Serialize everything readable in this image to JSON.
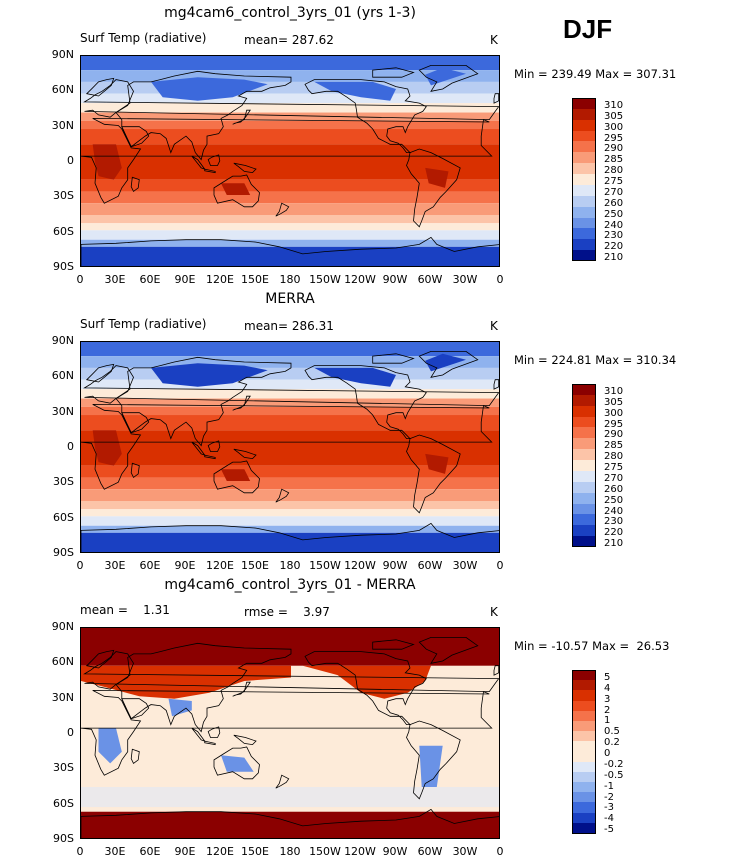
{
  "season": "DJF",
  "panels": [
    {
      "id": "model",
      "title": "mg4cam6_control_3yrs_01 (yrs 1-3)",
      "left_label": "Surf Temp (radiative)",
      "mid_label": "mean= 287.62",
      "units": "K",
      "minmax": "Min = 239.49 Max = 307.31",
      "levels": [
        "310",
        "305",
        "300",
        "295",
        "290",
        "285",
        "280",
        "275",
        "270",
        "260",
        "250",
        "240",
        "230",
        "220",
        "210"
      ],
      "colors": [
        "#8b0000",
        "#b21a00",
        "#d93000",
        "#ec4d1f",
        "#f5724a",
        "#f99b78",
        "#fcc4a8",
        "#fdebd9",
        "#dfe8f7",
        "#b8cdf2",
        "#8fb2ee",
        "#6a92e6",
        "#3c69dc",
        "#1a40c2",
        "#00108a"
      ]
    },
    {
      "id": "obs",
      "title": "MERRA",
      "left_label": "Surf Temp (radiative)",
      "mid_label": "mean= 286.31",
      "units": "K",
      "minmax": "Min = 224.81 Max = 310.34",
      "levels": [
        "310",
        "305",
        "300",
        "295",
        "290",
        "285",
        "280",
        "275",
        "270",
        "260",
        "250",
        "240",
        "230",
        "220",
        "210"
      ],
      "colors": [
        "#8b0000",
        "#b21a00",
        "#d93000",
        "#ec4d1f",
        "#f5724a",
        "#f99b78",
        "#fcc4a8",
        "#fdebd9",
        "#dfe8f7",
        "#b8cdf2",
        "#8fb2ee",
        "#6a92e6",
        "#3c69dc",
        "#1a40c2",
        "#00108a"
      ]
    },
    {
      "id": "diff",
      "title": "mg4cam6_control_3yrs_01 - MERRA",
      "left_label": "mean =    1.31",
      "mid_label": "rmse =    3.97",
      "units": "K",
      "minmax": "Min = -10.57 Max =  26.53",
      "levels": [
        "5",
        "4",
        "3",
        "2",
        "1",
        "0.5",
        "0.2",
        "0",
        "-0.2",
        "-0.5",
        "-1",
        "-2",
        "-3",
        "-4",
        "-5"
      ],
      "colors": [
        "#8b0000",
        "#b21a00",
        "#d93000",
        "#ec4d1f",
        "#f5724a",
        "#f99b78",
        "#fcc4a8",
        "#fdebd9",
        "#fdebd9",
        "#dfe8f7",
        "#b8cdf2",
        "#8fb2ee",
        "#6a92e6",
        "#3c69dc",
        "#1a40c2",
        "#00108a"
      ]
    }
  ],
  "lat_labels": [
    "90N",
    "60N",
    "30N",
    "0",
    "30S",
    "60S",
    "90S"
  ],
  "lon_labels": [
    "0",
    "30E",
    "60E",
    "90E",
    "120E",
    "150E",
    "180",
    "150W",
    "120W",
    "90W",
    "60W",
    "30W",
    "0"
  ],
  "chart_data": [
    {
      "type": "heatmap",
      "title": "mg4cam6_control_3yrs_01 (yrs 1-3)",
      "variable": "Surf Temp (radiative)",
      "units": "K",
      "mean": 287.62,
      "min": 239.49,
      "max": 307.31,
      "contour_levels": [
        210,
        220,
        230,
        240,
        250,
        260,
        270,
        275,
        280,
        285,
        290,
        295,
        300,
        305,
        310
      ],
      "lat_range": [
        -90,
        90
      ],
      "lon_range": [
        0,
        360
      ]
    },
    {
      "type": "heatmap",
      "title": "MERRA",
      "variable": "Surf Temp (radiative)",
      "units": "K",
      "mean": 286.31,
      "min": 224.81,
      "max": 310.34,
      "contour_levels": [
        210,
        220,
        230,
        240,
        250,
        260,
        270,
        275,
        280,
        285,
        290,
        295,
        300,
        305,
        310
      ],
      "lat_range": [
        -90,
        90
      ],
      "lon_range": [
        0,
        360
      ]
    },
    {
      "type": "heatmap",
      "title": "mg4cam6_control_3yrs_01 - MERRA",
      "units": "K",
      "mean": 1.31,
      "rmse": 3.97,
      "min": -10.57,
      "max": 26.53,
      "contour_levels": [
        -5,
        -4,
        -3,
        -2,
        -1,
        -0.5,
        -0.2,
        0,
        0.2,
        0.5,
        1,
        2,
        3,
        4,
        5
      ],
      "lat_range": [
        -90,
        90
      ],
      "lon_range": [
        0,
        360
      ]
    }
  ]
}
